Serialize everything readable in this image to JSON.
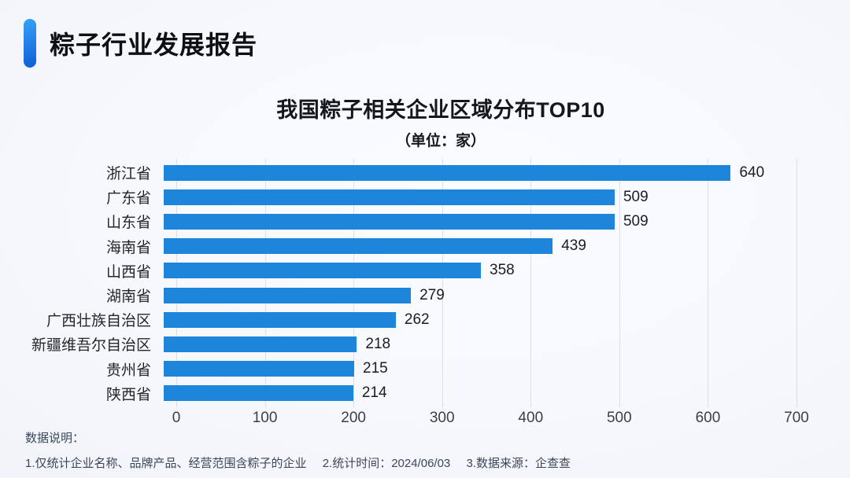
{
  "header": {
    "title": "粽子行业发展报告"
  },
  "chart_data": {
    "type": "bar",
    "orientation": "horizontal",
    "title": "我国粽子相关企业区域分布TOP10",
    "subtitle": "（单位：家）",
    "xlabel": "",
    "ylabel": "",
    "categories": [
      "浙江省",
      "广东省",
      "山东省",
      "海南省",
      "山西省",
      "湖南省",
      "广西壮族自治区",
      "新疆维吾尔自治区",
      "贵州省",
      "陕西省"
    ],
    "values": [
      640,
      509,
      509,
      439,
      358,
      279,
      262,
      218,
      215,
      214
    ],
    "xlim": [
      0,
      700
    ],
    "x_ticks": [
      0,
      100,
      200,
      300,
      400,
      500,
      600,
      700
    ],
    "grid": true,
    "legend": "none",
    "value_labels": "outside-end"
  },
  "footer": {
    "heading": "数据说明：",
    "notes": [
      "1.仅统计企业名称、品牌产品、经营范围含粽子的企业",
      "2.统计时间：2024/06/03",
      "3.数据来源：企查查"
    ]
  },
  "theme": {
    "bar_color": "#1e86da",
    "accent_gradient_top": "#35a3f7",
    "accent_gradient_bottom": "#1463d8",
    "title_color": "#0d0f12",
    "note_color": "#3b4659"
  }
}
